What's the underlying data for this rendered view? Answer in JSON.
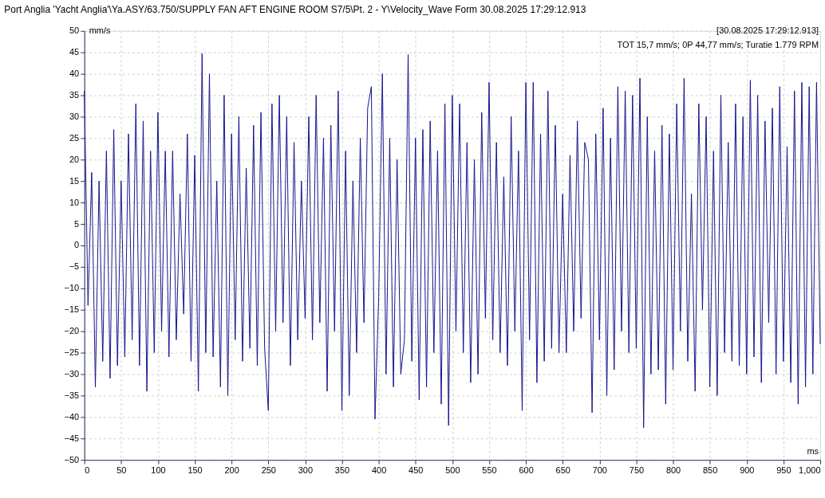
{
  "chart_data": {
    "type": "line",
    "title": "Port Anglia 'Yacht Anglia'\\Ya.ASY/63.750/SUPPLY FAN AFT ENGINE ROOM S7/5\\Pt. 2 - Y\\Velocity_Wave Form    30.08.2025 17:29:12.913",
    "xlabel": "ms",
    "ylabel": "mm/s",
    "annotations": [
      "[30.08.2025 17:29:12.913]",
      "TOT 15,7 mm/s; 0P 44,77 mm/s; Turatie 1.779 RPM"
    ],
    "x": [
      0,
      5,
      10,
      15,
      20,
      25,
      30,
      35,
      40,
      45,
      50,
      55,
      60,
      65,
      70,
      75,
      80,
      85,
      90,
      95,
      100,
      105,
      110,
      115,
      120,
      125,
      130,
      135,
      140,
      145,
      150,
      155,
      160,
      165,
      170,
      175,
      180,
      185,
      190,
      195,
      200,
      205,
      210,
      215,
      220,
      225,
      230,
      235,
      240,
      245,
      250,
      255,
      260,
      265,
      270,
      275,
      280,
      285,
      290,
      295,
      300,
      305,
      310,
      315,
      320,
      325,
      330,
      335,
      340,
      345,
      350,
      355,
      360,
      365,
      370,
      375,
      380,
      385,
      390,
      395,
      400,
      405,
      410,
      415,
      420,
      425,
      430,
      435,
      440,
      445,
      450,
      455,
      460,
      465,
      470,
      475,
      480,
      485,
      490,
      495,
      500,
      505,
      510,
      515,
      520,
      525,
      530,
      535,
      540,
      545,
      550,
      555,
      560,
      565,
      570,
      575,
      580,
      585,
      590,
      595,
      600,
      605,
      610,
      615,
      620,
      625,
      630,
      635,
      640,
      645,
      650,
      655,
      660,
      665,
      670,
      675,
      680,
      685,
      690,
      695,
      700,
      705,
      710,
      715,
      720,
      725,
      730,
      735,
      740,
      745,
      750,
      755,
      760,
      765,
      770,
      775,
      780,
      785,
      790,
      795,
      800,
      805,
      810,
      815,
      820,
      825,
      830,
      835,
      840,
      845,
      850,
      855,
      860,
      865,
      870,
      875,
      880,
      885,
      890,
      895,
      900,
      905,
      910,
      915,
      920,
      925,
      930,
      935,
      940,
      945,
      950,
      955,
      960,
      965,
      970,
      975,
      980,
      985,
      990,
      995,
      1000
    ],
    "series": [
      {
        "color": "#14148c",
        "values": [
          36,
          -14,
          17,
          -33,
          15,
          -27,
          22,
          -31,
          27,
          -28,
          15,
          -26,
          26,
          -22,
          33,
          -28,
          29,
          -34,
          22,
          -25,
          31,
          -20,
          22,
          -26,
          22,
          -22,
          12,
          -16,
          26,
          -27,
          21,
          -34,
          44.7,
          -25,
          40,
          -26,
          15,
          -33,
          35,
          -35,
          26,
          -22,
          30,
          -27,
          18,
          -24,
          28,
          -28,
          31,
          -24,
          -38.5,
          33,
          -20,
          35,
          -18,
          30,
          -28,
          24,
          -22,
          15,
          -17,
          30,
          -22,
          35,
          -18,
          25,
          -34,
          28,
          -20,
          36,
          -38.5,
          22,
          -35,
          15,
          -25,
          25,
          -18,
          32,
          37,
          -40.5,
          -12,
          40,
          -30,
          25,
          -33,
          20,
          -30,
          -22,
          44.5,
          -27,
          25,
          -36,
          27,
          -33,
          29,
          -25,
          22,
          -37,
          33,
          -42,
          35,
          -20,
          33,
          -25,
          24,
          -32,
          20,
          -30,
          31,
          -17,
          38,
          -22,
          24,
          -25,
          16,
          -28,
          30,
          -20,
          22,
          -38.5,
          38,
          -22,
          38,
          -32,
          26,
          -27,
          36,
          -24,
          28,
          -25,
          12,
          -25,
          21,
          -20,
          29,
          -17,
          24,
          20,
          -39,
          26,
          -22,
          32,
          -35,
          25,
          -29,
          37,
          -20,
          36,
          -25,
          35,
          -24,
          39,
          -42.5,
          30,
          -30,
          22,
          -29,
          28,
          -37,
          26,
          -29,
          33,
          -20,
          39,
          -27,
          12,
          -34,
          33,
          -15,
          30,
          -33,
          22,
          -35,
          35,
          -25,
          24,
          -27,
          33,
          -28,
          30,
          -30,
          38.5,
          -26,
          35,
          -32,
          29,
          -18,
          32,
          -30,
          37,
          -27,
          23,
          -32,
          36,
          -37,
          38,
          -33,
          37,
          -30,
          38,
          -23
        ]
      }
    ],
    "xlim": [
      0,
      1000
    ],
    "ylim": [
      -50,
      50
    ],
    "xticks": [
      0,
      50,
      100,
      150,
      200,
      250,
      300,
      350,
      400,
      450,
      500,
      550,
      600,
      650,
      700,
      750,
      800,
      850,
      900,
      950,
      {
        "value": 1000,
        "label": "1,000"
      }
    ],
    "yticks": [
      -50,
      -45,
      -40,
      -35,
      -30,
      -25,
      -20,
      -15,
      -10,
      -5,
      0,
      5,
      10,
      15,
      20,
      25,
      30,
      35,
      40,
      45,
      50
    ],
    "grid": true,
    "marker": "none",
    "line_style": "solid"
  }
}
